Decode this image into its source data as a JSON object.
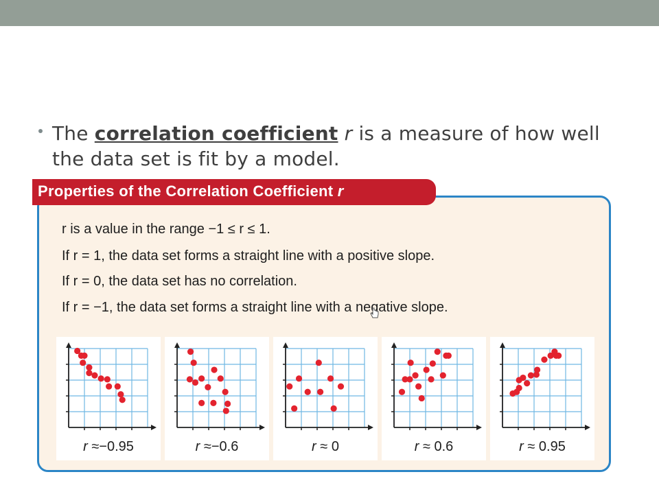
{
  "bullet": {
    "prefix": "The ",
    "term": "correlation coefficient",
    "variable": "r",
    "suffix": " is a measure of how well the data set is fit by a model."
  },
  "panel": {
    "title": "Properties of the Correlation Coefficient ",
    "title_var": "r",
    "properties": [
      "r is a value in the range −1 ≤ r ≤ 1.",
      "If r = 1, the data set forms a straight line with a positive slope.",
      "If r = 0, the data set has no correlation.",
      "If r = −1, the data set forms a straight line with a negative slope."
    ]
  },
  "colors": {
    "header": "#c41e2c",
    "border": "#2b85c6",
    "grid": "#6fb7e3",
    "point": "#e3232e",
    "panel_bg": "#fcf2e6"
  },
  "chart_data": [
    {
      "type": "scatter",
      "label_var": "r",
      "label_rel": "≈−",
      "label_value": "0.95",
      "r": -0.95,
      "xlim": [
        0,
        10
      ],
      "ylim": [
        0,
        10
      ],
      "points": [
        [
          1.1,
          9.7
        ],
        [
          1.6,
          9.1
        ],
        [
          2.0,
          9.1
        ],
        [
          1.8,
          8.2
        ],
        [
          2.6,
          7.6
        ],
        [
          2.6,
          6.9
        ],
        [
          3.3,
          6.6
        ],
        [
          4.1,
          6.2
        ],
        [
          4.9,
          6.1
        ],
        [
          5.1,
          5.2
        ],
        [
          6.2,
          5.2
        ],
        [
          6.6,
          4.2
        ],
        [
          6.8,
          3.5
        ]
      ]
    },
    {
      "type": "scatter",
      "label_var": "r",
      "label_rel": "≈−",
      "label_value": "0.6",
      "r": -0.6,
      "xlim": [
        0,
        10
      ],
      "ylim": [
        0,
        10
      ],
      "points": [
        [
          1.7,
          9.6
        ],
        [
          2.1,
          8.2
        ],
        [
          1.6,
          6.1
        ],
        [
          2.3,
          5.7
        ],
        [
          3.1,
          6.2
        ],
        [
          4.7,
          7.3
        ],
        [
          3.9,
          5.1
        ],
        [
          5.5,
          6.2
        ],
        [
          6.1,
          4.5
        ],
        [
          3.1,
          3.1
        ],
        [
          4.6,
          3.1
        ],
        [
          6.4,
          3.0
        ],
        [
          6.2,
          2.1
        ]
      ]
    },
    {
      "type": "scatter",
      "label_var": "r",
      "label_rel": "≈ ",
      "label_value": "0",
      "r": 0,
      "xlim": [
        0,
        10
      ],
      "ylim": [
        0,
        10
      ],
      "points": [
        [
          0.5,
          5.2
        ],
        [
          1.7,
          6.2
        ],
        [
          4.2,
          8.2
        ],
        [
          2.8,
          4.5
        ],
        [
          4.4,
          4.5
        ],
        [
          6.1,
          2.4
        ],
        [
          7.0,
          5.2
        ],
        [
          5.7,
          6.2
        ],
        [
          1.1,
          2.4
        ]
      ]
    },
    {
      "type": "scatter",
      "label_var": "r",
      "label_rel": "≈ ",
      "label_value": "0.6",
      "r": 0.6,
      "xlim": [
        0,
        10
      ],
      "ylim": [
        0,
        10
      ],
      "points": [
        [
          1.0,
          4.5
        ],
        [
          1.4,
          6.1
        ],
        [
          2.0,
          6.1
        ],
        [
          2.1,
          8.2
        ],
        [
          2.7,
          6.6
        ],
        [
          3.1,
          5.2
        ],
        [
          3.5,
          3.7
        ],
        [
          4.1,
          7.3
        ],
        [
          4.7,
          6.1
        ],
        [
          4.9,
          8.1
        ],
        [
          6.2,
          6.6
        ],
        [
          5.5,
          9.6
        ],
        [
          6.6,
          9.1
        ],
        [
          6.9,
          9.1
        ]
      ]
    },
    {
      "type": "scatter",
      "label_var": "r",
      "label_rel": "≈ ",
      "label_value": "0.95",
      "r": 0.95,
      "xlim": [
        0,
        10
      ],
      "ylim": [
        0,
        10
      ],
      "points": [
        [
          1.3,
          4.3
        ],
        [
          1.8,
          4.5
        ],
        [
          2.1,
          5.0
        ],
        [
          2.1,
          6.0
        ],
        [
          2.6,
          6.3
        ],
        [
          3.1,
          5.6
        ],
        [
          3.6,
          6.6
        ],
        [
          4.3,
          6.7
        ],
        [
          4.4,
          7.3
        ],
        [
          5.3,
          8.6
        ],
        [
          6.1,
          9.1
        ],
        [
          6.6,
          9.6
        ],
        [
          6.8,
          9.1
        ],
        [
          7.1,
          9.1
        ]
      ]
    }
  ]
}
